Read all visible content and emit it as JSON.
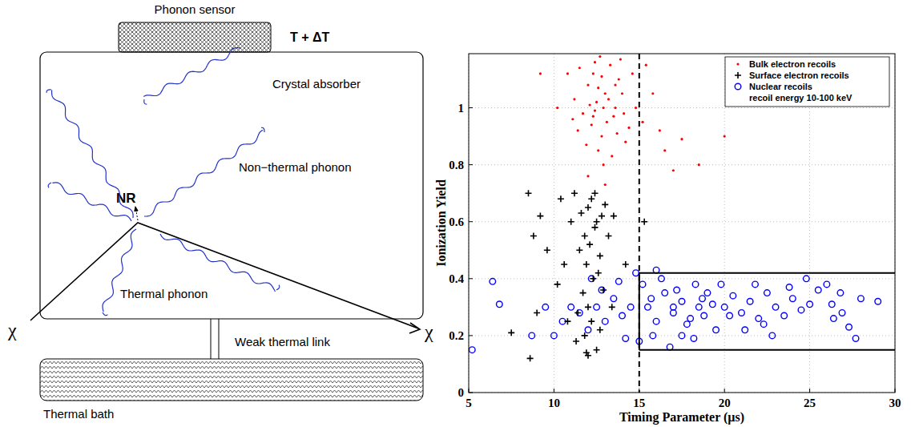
{
  "diagram": {
    "sensor_label": "Phonon sensor",
    "temperature": "T + ΔT",
    "absorber": "Crystal absorber",
    "recoil": "NR",
    "nonthermal": "Non−thermal phonon",
    "thermal": "Thermal phonon",
    "particle": "χ",
    "link": "Weak thermal link",
    "bath": "Thermal bath"
  },
  "chart_data": {
    "type": "scatter",
    "x_label": "Timing Parameter (µs)",
    "y_label": "Ionization Yield",
    "xlim": [
      5,
      30
    ],
    "xticks": [
      5,
      10,
      15,
      20,
      25,
      30
    ],
    "ylim": [
      0,
      1.19
    ],
    "yticks": [
      0,
      0.2,
      0.4,
      0.6,
      0.8,
      1
    ],
    "grid": true,
    "legend": "top-right",
    "cuts": {
      "timing": 15,
      "yield_band": [
        0.15,
        0.42
      ]
    },
    "series": [
      {
        "name": "Bulk electron recoils",
        "color": "#ff0000",
        "marker": "point",
        "x": [
          12.5,
          13.1,
          12.0,
          13.6,
          12.8,
          11.7,
          14.0,
          12.3,
          13.3,
          12.9,
          11.2,
          14.4,
          12.6,
          13.8,
          12.2,
          11.5,
          13.0,
          14.2,
          12.4,
          13.5,
          10.8,
          12.7,
          13.9,
          11.9,
          12.1,
          13.2,
          14.8,
          12.9,
          11.4,
          13.4,
          12.0,
          15.2,
          16.5,
          17.0,
          18.5,
          16.2,
          15.8,
          14.6,
          12.6,
          13.7,
          12.3,
          11.1,
          13.0,
          12.4,
          10.2,
          9.2,
          15.4,
          14.1,
          12.8,
          13.6,
          17.5,
          20.0
        ],
        "values": [
          1.02,
          0.95,
          1.08,
          1.0,
          0.9,
          0.98,
          1.05,
          1.12,
          1.15,
          1.0,
          1.03,
          0.93,
          0.85,
          1.1,
          0.94,
          1.14,
          1.05,
          0.88,
          0.99,
          0.97,
          1.12,
          1.18,
          1.17,
          0.87,
          1.01,
          1.03,
          1.0,
          0.8,
          0.92,
          0.83,
          0.76,
          0.95,
          0.85,
          0.78,
          0.8,
          0.92,
          1.05,
          1.12,
          1.07,
          0.91,
          0.97,
          0.96,
          0.73,
          1.16,
          1.0,
          1.12,
          1.15,
          0.98,
          1.11,
          1.08,
          0.89,
          0.9
        ]
      },
      {
        "name": "Surface electron recoils",
        "color": "#000000",
        "marker": "plus",
        "x": [
          12.0,
          11.8,
          12.5,
          12.2,
          11.5,
          12.8,
          11.9,
          12.4,
          13.0,
          11.6,
          12.1,
          12.7,
          12.3,
          11.7,
          12.6,
          12.0,
          11.4,
          12.9,
          12.2,
          11.8,
          12.5,
          11.3,
          12.7,
          13.2,
          13.4,
          11.0,
          10.6,
          10.2,
          9.6,
          9.2,
          8.8,
          8.5,
          9.0,
          8.6,
          10.8,
          12.0,
          13.5,
          14.2,
          15.3,
          11.2,
          12.4,
          11.9,
          7.5,
          10.4
        ],
        "values": [
          0.65,
          0.55,
          0.6,
          0.68,
          0.5,
          0.62,
          0.45,
          0.58,
          0.66,
          0.63,
          0.52,
          0.48,
          0.4,
          0.35,
          0.42,
          0.3,
          0.28,
          0.36,
          0.25,
          0.2,
          0.15,
          0.18,
          0.22,
          0.55,
          0.3,
          0.6,
          0.45,
          0.38,
          0.5,
          0.62,
          0.55,
          0.7,
          0.28,
          0.12,
          0.25,
          0.13,
          0.62,
          0.45,
          0.6,
          0.7,
          0.7,
          0.14,
          0.21,
          0.68
        ]
      },
      {
        "name": "Nuclear recoils",
        "note": "recoil energy 10-100 keV",
        "color": "#0000ff",
        "marker": "circle",
        "x": [
          15.5,
          16.0,
          16.5,
          17.0,
          17.5,
          18.0,
          18.5,
          19.0,
          19.5,
          20.0,
          15.2,
          15.8,
          16.3,
          17.2,
          17.8,
          18.3,
          18.8,
          19.3,
          20.5,
          21.0,
          21.5,
          22.0,
          22.5,
          23.0,
          23.5,
          24.0,
          24.5,
          25.0,
          25.5,
          26.0,
          26.3,
          26.8,
          27.7,
          28.0,
          29.0,
          14.5,
          14.0,
          13.5,
          13.0,
          12.5,
          12.0,
          11.5,
          11.0,
          10.5,
          10.0,
          12.8,
          13.8,
          14.8,
          15.0,
          16.8,
          17.5,
          18.2,
          19.8,
          21.2,
          22.8,
          23.8,
          24.8,
          16.0,
          14.2,
          5.2,
          6.4,
          6.8,
          9.5,
          8.7,
          12.2,
          15.7,
          17.0,
          18.7,
          20.3,
          21.8,
          22.3,
          26.4,
          26.9,
          27.3
        ],
        "values": [
          0.3,
          0.25,
          0.35,
          0.28,
          0.32,
          0.26,
          0.3,
          0.35,
          0.22,
          0.3,
          0.38,
          0.2,
          0.4,
          0.36,
          0.24,
          0.38,
          0.27,
          0.31,
          0.34,
          0.28,
          0.32,
          0.26,
          0.35,
          0.3,
          0.27,
          0.33,
          0.29,
          0.31,
          0.36,
          0.38,
          0.31,
          0.35,
          0.19,
          0.33,
          0.32,
          0.3,
          0.27,
          0.33,
          0.25,
          0.3,
          0.22,
          0.28,
          0.3,
          0.25,
          0.2,
          0.36,
          0.39,
          0.42,
          0.18,
          0.16,
          0.2,
          0.19,
          0.38,
          0.22,
          0.2,
          0.37,
          0.4,
          0.43,
          0.19,
          0.15,
          0.39,
          0.31,
          0.3,
          0.2,
          0.4,
          0.33,
          0.3,
          0.33,
          0.27,
          0.38,
          0.24,
          0.26,
          0.28,
          0.23
        ]
      }
    ]
  }
}
